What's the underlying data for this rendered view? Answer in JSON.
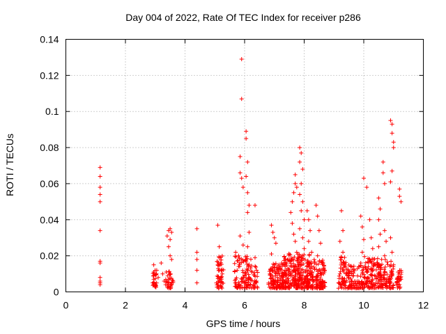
{
  "chart_data": {
    "type": "scatter",
    "title": "Day 004 of 2022, Rate Of TEC Index for receiver p286",
    "xlabel": "GPS time / hours",
    "ylabel": "ROTI / TECUs",
    "xlim": [
      0,
      12
    ],
    "ylim": [
      0,
      0.14
    ],
    "xticks": [
      0,
      2,
      4,
      6,
      8,
      10,
      12
    ],
    "yticks": [
      0,
      0.02,
      0.04,
      0.06,
      0.08,
      0.1,
      0.12,
      0.14
    ],
    "xtick_labels": [
      "0",
      "2",
      "4",
      "6",
      "8",
      "10",
      "12"
    ],
    "ytick_labels": [
      "0",
      "0.02",
      "0.04",
      "0.06",
      "0.08",
      "0.1",
      "0.12",
      "0.14"
    ],
    "grid": true,
    "marker": "+",
    "color": "#ff0000",
    "series": [
      {
        "name": "ROTI",
        "points": [
          [
            1.15,
            0.069
          ],
          [
            1.15,
            0.064
          ],
          [
            1.15,
            0.058
          ],
          [
            1.15,
            0.054
          ],
          [
            1.15,
            0.05
          ],
          [
            1.15,
            0.034
          ],
          [
            1.15,
            0.017
          ],
          [
            1.15,
            0.016
          ],
          [
            1.15,
            0.008
          ],
          [
            1.15,
            0.006
          ],
          [
            1.15,
            0.005
          ],
          [
            1.15,
            0.004
          ],
          [
            2.95,
            0.015
          ],
          [
            2.95,
            0.011
          ],
          [
            2.95,
            0.009
          ],
          [
            2.95,
            0.007
          ],
          [
            2.95,
            0.005
          ],
          [
            3.05,
            0.012
          ],
          [
            3.1,
            0.008
          ],
          [
            3.2,
            0.016
          ],
          [
            3.25,
            0.01
          ],
          [
            3.3,
            0.006
          ],
          [
            3.4,
            0.031
          ],
          [
            3.45,
            0.034
          ],
          [
            3.5,
            0.035
          ],
          [
            3.5,
            0.029
          ],
          [
            3.55,
            0.033
          ],
          [
            3.45,
            0.025
          ],
          [
            3.5,
            0.02
          ],
          [
            3.55,
            0.018
          ],
          [
            3.5,
            0.01
          ],
          [
            3.45,
            0.007
          ],
          [
            3.4,
            0.005
          ],
          [
            3.55,
            0.004
          ],
          [
            3.6,
            0.006
          ],
          [
            3.35,
            0.004
          ],
          [
            4.4,
            0.035
          ],
          [
            4.4,
            0.022
          ],
          [
            4.4,
            0.018
          ],
          [
            4.4,
            0.012
          ],
          [
            4.4,
            0.005
          ],
          [
            5.1,
            0.037
          ],
          [
            5.15,
            0.025
          ],
          [
            5.15,
            0.019
          ],
          [
            5.1,
            0.015
          ],
          [
            5.15,
            0.012
          ],
          [
            5.2,
            0.008
          ],
          [
            5.1,
            0.005
          ],
          [
            5.2,
            0.003
          ],
          [
            5.25,
            0.01
          ],
          [
            5.7,
            0.022
          ],
          [
            5.8,
            0.02
          ],
          [
            5.75,
            0.012
          ],
          [
            5.7,
            0.007
          ],
          [
            5.8,
            0.004
          ],
          [
            5.9,
            0.129
          ],
          [
            5.9,
            0.107
          ],
          [
            5.85,
            0.075
          ],
          [
            5.85,
            0.066
          ],
          [
            5.9,
            0.063
          ],
          [
            5.95,
            0.058
          ],
          [
            5.85,
            0.031
          ],
          [
            5.95,
            0.026
          ],
          [
            6.05,
            0.089
          ],
          [
            6.05,
            0.085
          ],
          [
            6.1,
            0.072
          ],
          [
            6.05,
            0.064
          ],
          [
            6.1,
            0.055
          ],
          [
            6.15,
            0.048
          ],
          [
            6.1,
            0.044
          ],
          [
            6.15,
            0.033
          ],
          [
            6.1,
            0.025
          ],
          [
            6.05,
            0.018
          ],
          [
            6.1,
            0.012
          ],
          [
            6.15,
            0.008
          ],
          [
            6.05,
            0.005
          ],
          [
            6.2,
            0.004
          ],
          [
            6.35,
            0.048
          ],
          [
            6.35,
            0.019
          ],
          [
            6.4,
            0.012
          ],
          [
            6.4,
            0.006
          ],
          [
            6.3,
            0.004
          ],
          [
            6.9,
            0.037
          ],
          [
            6.95,
            0.033
          ],
          [
            7.0,
            0.03
          ],
          [
            7.05,
            0.027
          ],
          [
            6.9,
            0.021
          ],
          [
            7.0,
            0.015
          ],
          [
            6.85,
            0.01
          ],
          [
            6.95,
            0.006
          ],
          [
            7.05,
            0.004
          ],
          [
            7.1,
            0.008
          ],
          [
            7.2,
            0.013
          ],
          [
            7.25,
            0.005
          ],
          [
            7.55,
            0.044
          ],
          [
            7.6,
            0.05
          ],
          [
            7.65,
            0.055
          ],
          [
            7.7,
            0.06
          ],
          [
            7.7,
            0.065
          ],
          [
            7.75,
            0.058
          ],
          [
            7.6,
            0.038
          ],
          [
            7.65,
            0.032
          ],
          [
            7.7,
            0.028
          ],
          [
            7.75,
            0.022
          ],
          [
            7.6,
            0.018
          ],
          [
            7.7,
            0.012
          ],
          [
            7.65,
            0.008
          ],
          [
            7.55,
            0.004
          ],
          [
            7.8,
            0.006
          ],
          [
            7.85,
            0.08
          ],
          [
            7.9,
            0.077
          ],
          [
            7.85,
            0.072
          ],
          [
            7.95,
            0.068
          ],
          [
            7.9,
            0.06
          ],
          [
            7.85,
            0.054
          ],
          [
            7.95,
            0.05
          ],
          [
            7.9,
            0.045
          ],
          [
            8.0,
            0.04
          ],
          [
            7.85,
            0.035
          ],
          [
            7.95,
            0.03
          ],
          [
            8.0,
            0.024
          ],
          [
            7.9,
            0.018
          ],
          [
            7.85,
            0.013
          ],
          [
            7.95,
            0.009
          ],
          [
            8.0,
            0.005
          ],
          [
            7.9,
            0.003
          ],
          [
            8.1,
            0.045
          ],
          [
            8.15,
            0.04
          ],
          [
            8.2,
            0.034
          ],
          [
            8.15,
            0.028
          ],
          [
            8.25,
            0.022
          ],
          [
            8.1,
            0.016
          ],
          [
            8.2,
            0.01
          ],
          [
            8.15,
            0.005
          ],
          [
            8.4,
            0.048
          ],
          [
            8.45,
            0.042
          ],
          [
            8.5,
            0.034
          ],
          [
            8.55,
            0.027
          ],
          [
            8.45,
            0.02
          ],
          [
            8.5,
            0.012
          ],
          [
            8.4,
            0.008
          ],
          [
            8.55,
            0.004
          ],
          [
            8.6,
            0.006
          ],
          [
            8.65,
            0.01
          ],
          [
            9.25,
            0.045
          ],
          [
            9.3,
            0.034
          ],
          [
            9.2,
            0.028
          ],
          [
            9.3,
            0.022
          ],
          [
            9.25,
            0.016
          ],
          [
            9.2,
            0.01
          ],
          [
            9.3,
            0.006
          ],
          [
            9.35,
            0.004
          ],
          [
            9.6,
            0.014
          ],
          [
            9.65,
            0.009
          ],
          [
            9.7,
            0.006
          ],
          [
            9.55,
            0.004
          ],
          [
            9.9,
            0.042
          ],
          [
            9.95,
            0.036
          ],
          [
            10.0,
            0.029
          ],
          [
            9.95,
            0.022
          ],
          [
            9.9,
            0.016
          ],
          [
            9.95,
            0.01
          ],
          [
            10.0,
            0.005
          ],
          [
            10.0,
            0.063
          ],
          [
            10.1,
            0.058
          ],
          [
            10.2,
            0.04
          ],
          [
            10.25,
            0.03
          ],
          [
            10.3,
            0.024
          ],
          [
            10.2,
            0.018
          ],
          [
            10.3,
            0.012
          ],
          [
            10.25,
            0.006
          ],
          [
            10.35,
            0.004
          ],
          [
            10.5,
            0.052
          ],
          [
            10.55,
            0.046
          ],
          [
            10.5,
            0.04
          ],
          [
            10.55,
            0.032
          ],
          [
            10.5,
            0.025
          ],
          [
            10.6,
            0.018
          ],
          [
            10.55,
            0.011
          ],
          [
            10.5,
            0.006
          ],
          [
            10.6,
            0.004
          ],
          [
            10.65,
            0.072
          ],
          [
            10.65,
            0.066
          ],
          [
            10.7,
            0.06
          ],
          [
            10.7,
            0.034
          ],
          [
            10.75,
            0.028
          ],
          [
            10.7,
            0.02
          ],
          [
            10.9,
            0.095
          ],
          [
            10.95,
            0.093
          ],
          [
            10.95,
            0.088
          ],
          [
            11.0,
            0.083
          ],
          [
            11.0,
            0.08
          ],
          [
            10.95,
            0.067
          ],
          [
            10.9,
            0.061
          ],
          [
            10.9,
            0.03
          ],
          [
            10.95,
            0.022
          ],
          [
            11.0,
            0.015
          ],
          [
            10.95,
            0.009
          ],
          [
            10.9,
            0.005
          ],
          [
            11.2,
            0.057
          ],
          [
            11.2,
            0.053
          ],
          [
            11.25,
            0.05
          ],
          [
            11.2,
            0.011
          ],
          [
            11.25,
            0.007
          ],
          [
            11.2,
            0.004
          ]
        ]
      }
    ],
    "dense_bands": [
      {
        "x_range": [
          2.9,
          3.05
        ],
        "y_range": [
          0.002,
          0.012
        ],
        "n": 22
      },
      {
        "x_range": [
          3.35,
          3.6
        ],
        "y_range": [
          0.002,
          0.012
        ],
        "n": 30
      },
      {
        "x_range": [
          5.05,
          5.3
        ],
        "y_range": [
          0.002,
          0.02
        ],
        "n": 45
      },
      {
        "x_range": [
          5.65,
          6.25
        ],
        "y_range": [
          0.002,
          0.02
        ],
        "n": 90
      },
      {
        "x_range": [
          6.3,
          6.45
        ],
        "y_range": [
          0.002,
          0.015
        ],
        "n": 20
      },
      {
        "x_range": [
          6.8,
          7.3
        ],
        "y_range": [
          0.002,
          0.016
        ],
        "n": 110
      },
      {
        "x_range": [
          7.3,
          8.2
        ],
        "y_range": [
          0.002,
          0.022
        ],
        "n": 260
      },
      {
        "x_range": [
          8.2,
          8.7
        ],
        "y_range": [
          0.002,
          0.018
        ],
        "n": 120
      },
      {
        "x_range": [
          9.15,
          9.4
        ],
        "y_range": [
          0.002,
          0.022
        ],
        "n": 50
      },
      {
        "x_range": [
          9.4,
          10.0
        ],
        "y_range": [
          0.002,
          0.015
        ],
        "n": 90
      },
      {
        "x_range": [
          10.0,
          10.5
        ],
        "y_range": [
          0.002,
          0.02
        ],
        "n": 100
      },
      {
        "x_range": [
          10.5,
          11.0
        ],
        "y_range": [
          0.002,
          0.018
        ],
        "n": 90
      },
      {
        "x_range": [
          11.1,
          11.3
        ],
        "y_range": [
          0.002,
          0.012
        ],
        "n": 30
      }
    ]
  }
}
